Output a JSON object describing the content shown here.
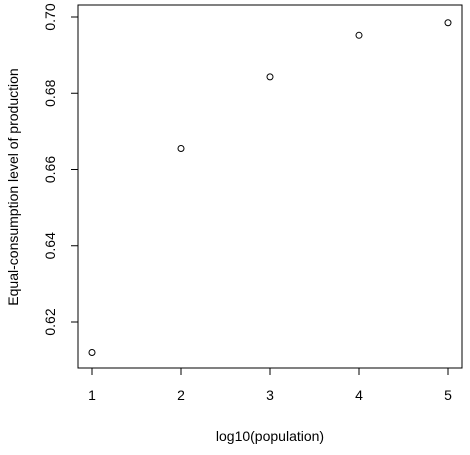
{
  "chart_data": {
    "type": "scatter",
    "title": "",
    "xlabel": "log10(population)",
    "ylabel": "Equal-consumption level of production",
    "x": [
      1,
      2,
      3,
      4,
      5
    ],
    "y": [
      0.612,
      0.6655,
      0.6843,
      0.6952,
      0.6985
    ],
    "xlim": [
      1,
      5
    ],
    "ylim": [
      0.61,
      0.7
    ],
    "x_ticks": [
      1,
      2,
      3,
      4,
      5
    ],
    "y_ticks": [
      0.62,
      0.64,
      0.66,
      0.68,
      0.7
    ],
    "x_tick_labels": [
      "1",
      "2",
      "3",
      "4",
      "5"
    ],
    "y_tick_labels": [
      "0.62",
      "0.64",
      "0.66",
      "0.68",
      "0.70"
    ],
    "grid": false,
    "legend": "none",
    "marker": "open-circle",
    "colors": {
      "axis": "#000000",
      "marker": "#000000",
      "background": "#ffffff"
    }
  }
}
